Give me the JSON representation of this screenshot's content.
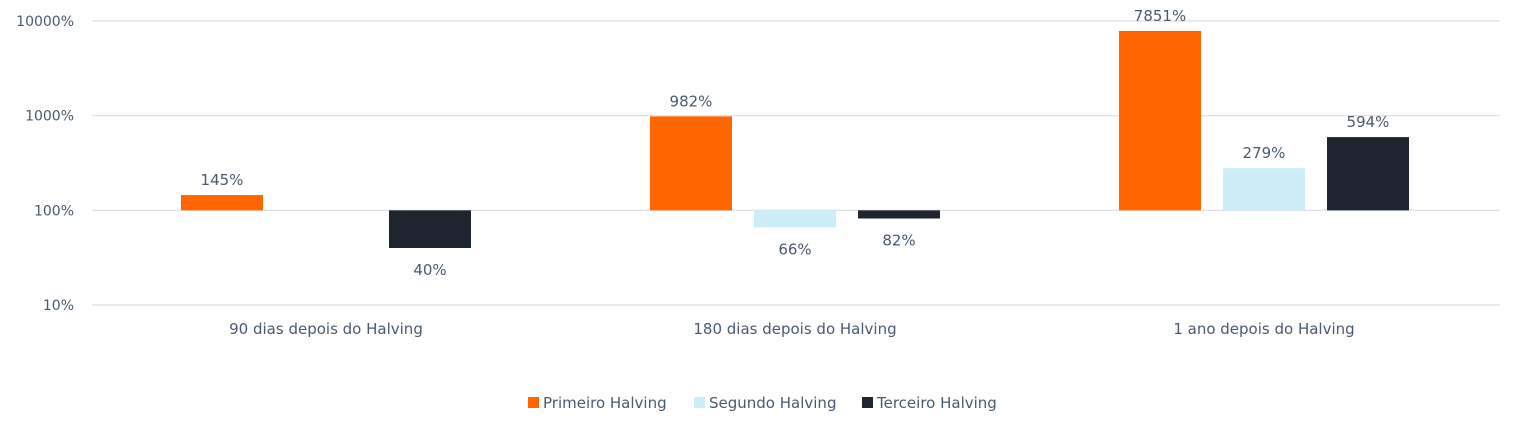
{
  "chart_data": {
    "type": "bar",
    "scale": "log",
    "categories": [
      "90 dias depois do Halving",
      "180 dias depois do Halving",
      "1 ano depois do Halving"
    ],
    "series": [
      {
        "name": "Primeiro Halving",
        "color": "#ff6600",
        "values": [
          145,
          982,
          7851
        ],
        "labels": [
          "145%",
          "982%",
          "7851%"
        ]
      },
      {
        "name": "Segundo Halving",
        "color": "#cdeef9",
        "values": [
          null,
          66,
          279
        ],
        "labels": [
          null,
          "66%",
          "279%"
        ]
      },
      {
        "name": "Terceiro Halving",
        "color": "#1e252e",
        "values": [
          40,
          82,
          594
        ],
        "labels": [
          "40%",
          "82%",
          "594%"
        ]
      }
    ],
    "baseline": 100,
    "ylim": [
      10,
      10000
    ],
    "yticks": [
      10,
      100,
      1000,
      10000
    ],
    "ytick_labels": [
      "10%",
      "100%",
      "1000%",
      "10000%"
    ],
    "title": "",
    "xlabel": "",
    "ylabel": "",
    "legend_position": "bottom-center",
    "grid": true
  }
}
